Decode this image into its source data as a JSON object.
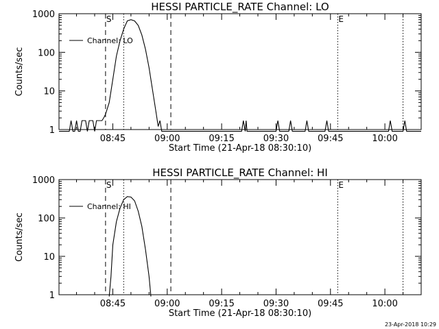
{
  "footer_timestamp": "23-Apr-2018 10:29",
  "chart_data": [
    {
      "type": "line",
      "title": "HESSI PARTICLE_RATE Channel: LO",
      "xlabel": "Start Time (21-Apr-18 08:30:10)",
      "ylabel": "Counts/sec",
      "yscale": "log",
      "xlim": [
        "08:30:10",
        "10:10:00"
      ],
      "ylim": [
        1,
        1000
      ],
      "xticks": [
        "08:45",
        "09:00",
        "09:15",
        "09:30",
        "09:45",
        "10:00"
      ],
      "yticks": [
        "1",
        "10",
        "100",
        "1000"
      ],
      "legend": {
        "entries": [
          "Channel: LO"
        ],
        "placement": "top-left"
      },
      "markers": [
        {
          "label": "S",
          "time": "08:43:00",
          "style": "dashed"
        },
        {
          "label": "",
          "time": "08:48:00",
          "style": "dotted"
        },
        {
          "label": "",
          "time": "09:01:00",
          "style": "dashed"
        },
        {
          "label": "E",
          "time": "09:47:00",
          "style": "dotted"
        },
        {
          "label": "",
          "time": "10:05:00",
          "style": "dotted"
        }
      ],
      "series": [
        {
          "name": "Channel: LO",
          "points": [
            [
              "08:30:10",
              0
            ],
            [
              "08:33:00",
              0
            ],
            [
              "08:33:30",
              1.7
            ],
            [
              "08:34:00",
              0
            ],
            [
              "08:34:30",
              0
            ],
            [
              "08:35:00",
              1.7
            ],
            [
              "08:35:30",
              0
            ],
            [
              "08:36:00",
              0
            ],
            [
              "08:36:30",
              1.7
            ],
            [
              "08:37:30",
              1.7
            ],
            [
              "08:38:00",
              0
            ],
            [
              "08:38:30",
              1.7
            ],
            [
              "08:39:30",
              1.7
            ],
            [
              "08:40:00",
              0
            ],
            [
              "08:40:30",
              1.7
            ],
            [
              "08:41:00",
              1.7
            ],
            [
              "08:42:00",
              1.7
            ],
            [
              "08:42:30",
              2
            ],
            [
              "08:43:00",
              2.5
            ],
            [
              "08:44:00",
              5
            ],
            [
              "08:45:00",
              20
            ],
            [
              "08:46:00",
              80
            ],
            [
              "08:47:00",
              200
            ],
            [
              "08:48:00",
              400
            ],
            [
              "08:49:00",
              650
            ],
            [
              "08:50:00",
              700
            ],
            [
              "08:51:00",
              650
            ],
            [
              "08:52:00",
              500
            ],
            [
              "08:53:00",
              280
            ],
            [
              "08:54:00",
              120
            ],
            [
              "08:55:00",
              40
            ],
            [
              "08:56:00",
              10
            ],
            [
              "08:57:00",
              2.5
            ],
            [
              "08:57:30",
              1.2
            ],
            [
              "08:58:00",
              1.7
            ],
            [
              "08:58:30",
              0
            ],
            [
              "09:20:30",
              0
            ],
            [
              "09:21:00",
              1.7
            ],
            [
              "09:21:30",
              0
            ],
            [
              "09:21:45",
              1.7
            ],
            [
              "09:22:00",
              0
            ],
            [
              "09:30:00",
              0
            ],
            [
              "09:30:30",
              1.7
            ],
            [
              "09:31:00",
              0
            ],
            [
              "09:33:30",
              0
            ],
            [
              "09:34:00",
              1.7
            ],
            [
              "09:34:30",
              0
            ],
            [
              "09:38:00",
              0
            ],
            [
              "09:38:30",
              1.7
            ],
            [
              "09:39:00",
              0
            ],
            [
              "09:43:30",
              0
            ],
            [
              "09:44:00",
              1.7
            ],
            [
              "09:44:30",
              0
            ],
            [
              "10:01:00",
              0
            ],
            [
              "10:01:30",
              1.7
            ],
            [
              "10:02:00",
              0
            ],
            [
              "10:05:00",
              0
            ],
            [
              "10:05:30",
              1.7
            ],
            [
              "10:06:00",
              0
            ],
            [
              "10:10:00",
              0
            ]
          ]
        }
      ]
    },
    {
      "type": "line",
      "title": "HESSI PARTICLE_RATE Channel: HI",
      "xlabel": "Start Time (21-Apr-18 08:30:10)",
      "ylabel": "Counts/sec",
      "yscale": "log",
      "xlim": [
        "08:30:10",
        "10:10:00"
      ],
      "ylim": [
        1,
        1000
      ],
      "xticks": [
        "08:45",
        "09:00",
        "09:15",
        "09:30",
        "09:45",
        "10:00"
      ],
      "yticks": [
        "1",
        "10",
        "100",
        "1000"
      ],
      "legend": {
        "entries": [
          "Channel: HI"
        ],
        "placement": "top-left"
      },
      "markers": [
        {
          "label": "S",
          "time": "08:43:00",
          "style": "dashed"
        },
        {
          "label": "",
          "time": "08:48:00",
          "style": "dotted"
        },
        {
          "label": "",
          "time": "09:01:00",
          "style": "dashed"
        },
        {
          "label": "E",
          "time": "09:47:00",
          "style": "dotted"
        },
        {
          "label": "",
          "time": "10:05:00",
          "style": "dotted"
        }
      ],
      "series": [
        {
          "name": "Channel: HI",
          "points": [
            [
              "08:44:00",
              0
            ],
            [
              "08:44:30",
              3
            ],
            [
              "08:45:00",
              20
            ],
            [
              "08:46:00",
              80
            ],
            [
              "08:47:00",
              180
            ],
            [
              "08:48:00",
              300
            ],
            [
              "08:49:00",
              360
            ],
            [
              "08:50:00",
              350
            ],
            [
              "08:51:00",
              280
            ],
            [
              "08:52:00",
              150
            ],
            [
              "08:53:00",
              60
            ],
            [
              "08:54:00",
              15
            ],
            [
              "08:55:00",
              3
            ],
            [
              "08:55:30",
              0
            ]
          ]
        }
      ]
    }
  ]
}
